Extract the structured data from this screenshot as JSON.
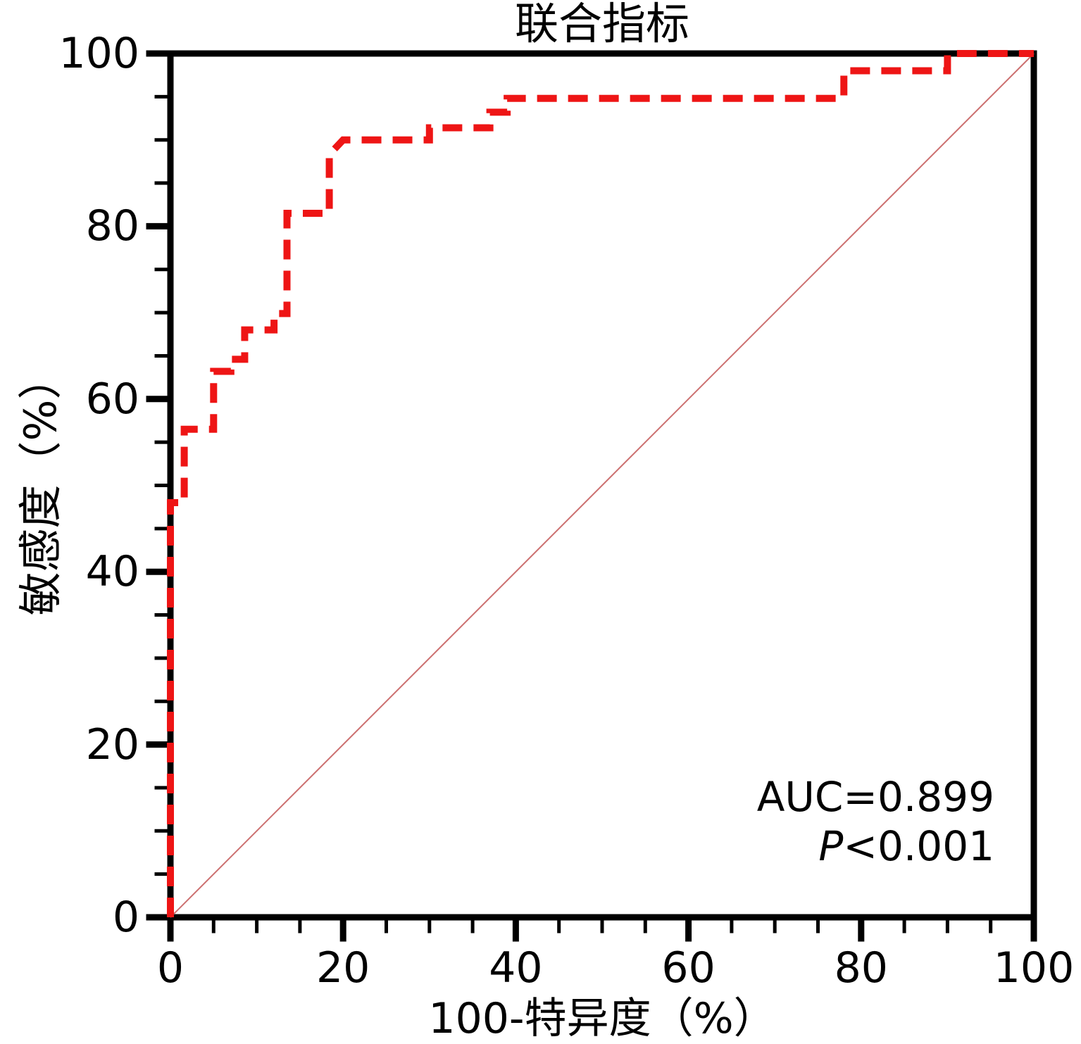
{
  "chart_data": {
    "type": "line",
    "subtype": "roc-step-curve",
    "title": "联合指标",
    "xlabel": "100-特异度（%）",
    "ylabel": "敏感度（%）",
    "xlim": [
      0,
      100
    ],
    "ylim": [
      0,
      100
    ],
    "x_ticks": [
      "0",
      "20",
      "40",
      "60",
      "80",
      "100"
    ],
    "x_tick_values": [
      0,
      20,
      40,
      60,
      80,
      100
    ],
    "y_ticks": [
      "0",
      "20",
      "40",
      "60",
      "80",
      "100"
    ],
    "y_tick_values": [
      0,
      20,
      40,
      60,
      80,
      100
    ],
    "minor_tick_step": 5,
    "grid": "off",
    "legend": "none",
    "series": [
      {
        "name": "联合指标",
        "line_style": "dashed",
        "color": "#ee1515",
        "points": [
          [
            0,
            0
          ],
          [
            0,
            48
          ],
          [
            1.6,
            48
          ],
          [
            1.6,
            56.5
          ],
          [
            5,
            56.5
          ],
          [
            5,
            63.2
          ],
          [
            7,
            63.2
          ],
          [
            7,
            64.6
          ],
          [
            8.6,
            64.6
          ],
          [
            8.6,
            68
          ],
          [
            12,
            68
          ],
          [
            12,
            69.9
          ],
          [
            13.5,
            69.9
          ],
          [
            13.5,
            81.5
          ],
          [
            18.4,
            81.5
          ],
          [
            18.4,
            88.3
          ],
          [
            20,
            90
          ],
          [
            30,
            90
          ],
          [
            30,
            91.4
          ],
          [
            37,
            91.4
          ],
          [
            37,
            93.2
          ],
          [
            39,
            93.2
          ],
          [
            39,
            94.8
          ],
          [
            78,
            94.8
          ],
          [
            78,
            98
          ],
          [
            90,
            98
          ],
          [
            90,
            100
          ],
          [
            100,
            100
          ]
        ]
      }
    ],
    "reference_line": {
      "from": [
        0,
        0
      ],
      "to": [
        100,
        100
      ],
      "color": "#cc7070",
      "style": "solid-thin"
    },
    "annotation": {
      "auc_text": "AUC=0.899",
      "p_italic": "P",
      "p_rest": "<0.001"
    },
    "colors": {
      "axis": "#000000",
      "text": "#000000",
      "curve": "#ee1515",
      "reference_line": "#cc7070",
      "background": "#ffffff"
    }
  }
}
